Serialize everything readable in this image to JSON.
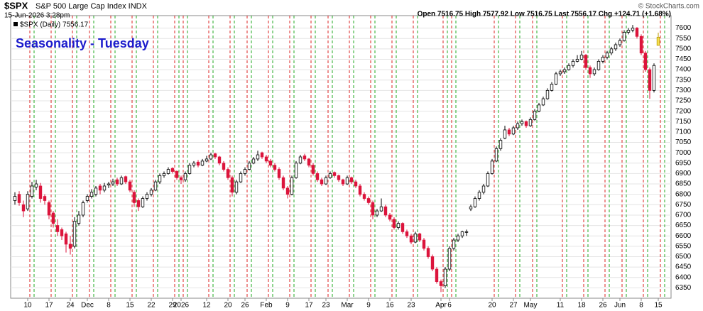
{
  "chart_data": {
    "type": "candlestick",
    "symbol": "$SPX",
    "title": "S&P 500 Large Cap Index  INDX",
    "timestamp": "15-Jun-2026 3:28pm",
    "quote": "Open 7516.75  High 7577.92  Low 7516.75  Last 7556.17  Chg +124.71 (+1.68%)",
    "credit": "© StockCharts.com",
    "legend": "$SPX (Daily) 7556.17",
    "annotation": "Seasonality - Tuesday",
    "up_color": "#ffffff",
    "down_color": "#dc143c",
    "last_color": "#f5e050",
    "ylim": [
      6300,
      7660
    ],
    "yticks": [
      6350,
      6400,
      6450,
      6500,
      6550,
      6600,
      6650,
      6700,
      6750,
      6800,
      6850,
      6900,
      6950,
      7000,
      7050,
      7100,
      7150,
      7200,
      7250,
      7300,
      7350,
      7400,
      7450,
      7500,
      7550,
      7600
    ],
    "xlim": [
      -1,
      154
    ],
    "xticks": [
      {
        "value": 3,
        "label": "10"
      },
      {
        "value": 8,
        "label": "17"
      },
      {
        "value": 13,
        "label": "24"
      },
      {
        "value": 17,
        "label": "Dec"
      },
      {
        "value": 22,
        "label": "8"
      },
      {
        "value": 27,
        "label": "15"
      },
      {
        "value": 32,
        "label": "22"
      },
      {
        "value": 37,
        "label": "29"
      },
      {
        "value": 39,
        "label": "2026"
      },
      {
        "value": 45,
        "label": "12"
      },
      {
        "value": 50,
        "label": "20"
      },
      {
        "value": 54,
        "label": "26"
      },
      {
        "value": 59,
        "label": "Feb"
      },
      {
        "value": 64,
        "label": "9"
      },
      {
        "value": 69,
        "label": "17"
      },
      {
        "value": 73,
        "label": "23"
      },
      {
        "value": 78,
        "label": "Mar"
      },
      {
        "value": 83,
        "label": "9"
      },
      {
        "value": 88,
        "label": "16"
      },
      {
        "value": 93,
        "label": "23"
      },
      {
        "value": 100,
        "label": "Apr"
      },
      {
        "value": 102,
        "label": "6"
      },
      {
        "value": 112,
        "label": "20"
      },
      {
        "value": 117,
        "label": "27"
      },
      {
        "value": 121,
        "label": "May"
      },
      {
        "value": 128,
        "label": "11"
      },
      {
        "value": 133,
        "label": "18"
      },
      {
        "value": 138,
        "label": "26"
      },
      {
        "value": 142,
        "label": "Jun"
      },
      {
        "value": 147,
        "label": "8"
      },
      {
        "value": 151,
        "label": "15"
      }
    ],
    "grid": true,
    "candles": [
      [
        6770,
        6810,
        6750,
        6790
      ],
      [
        6800,
        6815,
        6745,
        6760
      ],
      [
        6750,
        6770,
        6690,
        6720
      ],
      [
        6730,
        6815,
        6720,
        6800
      ],
      [
        6790,
        6860,
        6780,
        6840
      ],
      [
        6835,
        6870,
        6820,
        6850
      ],
      [
        6840,
        6855,
        6760,
        6780
      ],
      [
        6790,
        6800,
        6750,
        6770
      ],
      [
        6760,
        6770,
        6680,
        6700
      ],
      [
        6710,
        6720,
        6640,
        6660
      ],
      [
        6650,
        6680,
        6600,
        6620
      ],
      [
        6630,
        6640,
        6580,
        6600
      ],
      [
        6610,
        6620,
        6520,
        6560
      ],
      [
        6560,
        6600,
        6510,
        6540
      ],
      [
        6550,
        6690,
        6540,
        6670
      ],
      [
        6660,
        6720,
        6650,
        6700
      ],
      [
        6700,
        6770,
        6690,
        6760
      ],
      [
        6770,
        6800,
        6760,
        6790
      ],
      [
        6790,
        6825,
        6780,
        6810
      ],
      [
        6800,
        6840,
        6790,
        6830
      ],
      [
        6840,
        6850,
        6800,
        6820
      ],
      [
        6820,
        6855,
        6810,
        6840
      ],
      [
        6845,
        6860,
        6830,
        6850
      ],
      [
        6850,
        6875,
        6840,
        6860
      ],
      [
        6870,
        6880,
        6840,
        6850
      ],
      [
        6850,
        6890,
        6845,
        6880
      ],
      [
        6885,
        6890,
        6850,
        6860
      ],
      [
        6860,
        6870,
        6810,
        6820
      ],
      [
        6810,
        6820,
        6740,
        6760
      ],
      [
        6770,
        6780,
        6720,
        6740
      ],
      [
        6740,
        6790,
        6735,
        6780
      ],
      [
        6780,
        6810,
        6770,
        6800
      ],
      [
        6800,
        6830,
        6790,
        6820
      ],
      [
        6820,
        6870,
        6815,
        6860
      ],
      [
        6860,
        6900,
        6850,
        6890
      ],
      [
        6890,
        6910,
        6880,
        6900
      ],
      [
        6900,
        6930,
        6895,
        6920
      ],
      [
        6925,
        6930,
        6900,
        6910
      ],
      [
        6910,
        6915,
        6870,
        6880
      ],
      [
        6880,
        6890,
        6850,
        6870
      ],
      [
        6870,
        6910,
        6860,
        6900
      ],
      [
        6900,
        6950,
        6895,
        6940
      ],
      [
        6940,
        6960,
        6930,
        6950
      ],
      [
        6955,
        6965,
        6930,
        6940
      ],
      [
        6940,
        6970,
        6935,
        6960
      ],
      [
        6960,
        6985,
        6955,
        6970
      ],
      [
        6970,
        7000,
        6965,
        6990
      ],
      [
        6995,
        7000,
        6970,
        6980
      ],
      [
        6980,
        6985,
        6940,
        6950
      ],
      [
        6950,
        6960,
        6910,
        6920
      ],
      [
        6920,
        6930,
        6870,
        6880
      ],
      [
        6880,
        6890,
        6790,
        6810
      ],
      [
        6810,
        6870,
        6800,
        6860
      ],
      [
        6860,
        6910,
        6855,
        6900
      ],
      [
        6900,
        6930,
        6890,
        6920
      ],
      [
        6920,
        6960,
        6915,
        6950
      ],
      [
        6950,
        6980,
        6945,
        6970
      ],
      [
        6970,
        7010,
        6960,
        6990
      ],
      [
        7000,
        7005,
        6970,
        6980
      ],
      [
        6980,
        6990,
        6950,
        6960
      ],
      [
        6960,
        6970,
        6930,
        6940
      ],
      [
        6940,
        6950,
        6910,
        6920
      ],
      [
        6920,
        6930,
        6870,
        6880
      ],
      [
        6880,
        6890,
        6820,
        6830
      ],
      [
        6830,
        6840,
        6780,
        6800
      ],
      [
        6800,
        6890,
        6795,
        6880
      ],
      [
        6880,
        6960,
        6875,
        6950
      ],
      [
        6950,
        6990,
        6945,
        6980
      ],
      [
        6985,
        6995,
        6960,
        6970
      ],
      [
        6970,
        6975,
        6930,
        6940
      ],
      [
        6940,
        6950,
        6890,
        6900
      ],
      [
        6900,
        6910,
        6860,
        6870
      ],
      [
        6870,
        6880,
        6840,
        6850
      ],
      [
        6850,
        6890,
        6845,
        6880
      ],
      [
        6880,
        6910,
        6875,
        6900
      ],
      [
        6905,
        6910,
        6880,
        6890
      ],
      [
        6890,
        6895,
        6860,
        6870
      ],
      [
        6870,
        6875,
        6840,
        6850
      ],
      [
        6850,
        6890,
        6845,
        6880
      ],
      [
        6880,
        6885,
        6850,
        6860
      ],
      [
        6860,
        6870,
        6830,
        6840
      ],
      [
        6840,
        6850,
        6790,
        6800
      ],
      [
        6800,
        6810,
        6770,
        6780
      ],
      [
        6780,
        6790,
        6750,
        6760
      ],
      [
        6760,
        6770,
        6680,
        6700
      ],
      [
        6700,
        6730,
        6690,
        6720
      ],
      [
        6720,
        6780,
        6715,
        6740
      ],
      [
        6740,
        6750,
        6690,
        6700
      ],
      [
        6700,
        6710,
        6670,
        6680
      ],
      [
        6680,
        6690,
        6630,
        6640
      ],
      [
        6640,
        6670,
        6630,
        6660
      ],
      [
        6660,
        6665,
        6610,
        6620
      ],
      [
        6620,
        6630,
        6590,
        6600
      ],
      [
        6600,
        6610,
        6560,
        6570
      ],
      [
        6570,
        6620,
        6565,
        6610
      ],
      [
        6610,
        6615,
        6570,
        6580
      ],
      [
        6580,
        6590,
        6530,
        6540
      ],
      [
        6540,
        6550,
        6490,
        6500
      ],
      [
        6500,
        6510,
        6430,
        6440
      ],
      [
        6440,
        6450,
        6370,
        6380
      ],
      [
        6380,
        6390,
        6330,
        6360
      ],
      [
        6360,
        6450,
        6350,
        6440
      ],
      [
        6440,
        6550,
        6430,
        6540
      ],
      [
        6540,
        6590,
        6530,
        6580
      ],
      [
        6580,
        6610,
        6570,
        6600
      ],
      [
        6600,
        6625,
        6590,
        6620
      ],
      [
        6620,
        6630,
        6600,
        6620
      ],
      [
        6730,
        6750,
        6720,
        6740
      ],
      [
        6740,
        6790,
        6735,
        6780
      ],
      [
        6780,
        6820,
        6770,
        6810
      ],
      [
        6810,
        6850,
        6800,
        6840
      ],
      [
        6840,
        6910,
        6835,
        6900
      ],
      [
        6900,
        6970,
        6895,
        6960
      ],
      [
        6960,
        7030,
        6955,
        7020
      ],
      [
        7020,
        7070,
        7010,
        7060
      ],
      [
        7070,
        7130,
        7065,
        7110
      ],
      [
        7110,
        7120,
        7080,
        7090
      ],
      [
        7090,
        7130,
        7085,
        7120
      ],
      [
        7120,
        7150,
        7110,
        7140
      ],
      [
        7140,
        7160,
        7130,
        7150
      ],
      [
        7150,
        7155,
        7120,
        7130
      ],
      [
        7130,
        7170,
        7125,
        7160
      ],
      [
        7160,
        7210,
        7155,
        7200
      ],
      [
        7200,
        7240,
        7195,
        7230
      ],
      [
        7230,
        7270,
        7225,
        7260
      ],
      [
        7260,
        7310,
        7255,
        7300
      ],
      [
        7300,
        7340,
        7295,
        7330
      ],
      [
        7330,
        7390,
        7325,
        7380
      ],
      [
        7380,
        7400,
        7370,
        7390
      ],
      [
        7390,
        7410,
        7380,
        7400
      ],
      [
        7400,
        7430,
        7395,
        7420
      ],
      [
        7420,
        7450,
        7410,
        7440
      ],
      [
        7440,
        7470,
        7435,
        7450
      ],
      [
        7450,
        7490,
        7445,
        7470
      ],
      [
        7470,
        7475,
        7400,
        7410
      ],
      [
        7410,
        7420,
        7360,
        7380
      ],
      [
        7380,
        7410,
        7370,
        7400
      ],
      [
        7400,
        7450,
        7395,
        7440
      ],
      [
        7440,
        7470,
        7430,
        7460
      ],
      [
        7460,
        7490,
        7450,
        7480
      ],
      [
        7480,
        7510,
        7470,
        7500
      ],
      [
        7500,
        7530,
        7490,
        7520
      ],
      [
        7520,
        7550,
        7510,
        7540
      ],
      [
        7540,
        7590,
        7535,
        7580
      ],
      [
        7580,
        7600,
        7570,
        7590
      ],
      [
        7590,
        7615,
        7580,
        7600
      ],
      [
        7600,
        7605,
        7550,
        7560
      ],
      [
        7560,
        7570,
        7470,
        7480
      ],
      [
        7480,
        7490,
        7390,
        7400
      ],
      [
        7400,
        7410,
        7260,
        7300
      ],
      [
        7300,
        7430,
        7290,
        7420
      ],
      [
        7516.75,
        7577.92,
        7516.75,
        7556.17
      ]
    ]
  }
}
